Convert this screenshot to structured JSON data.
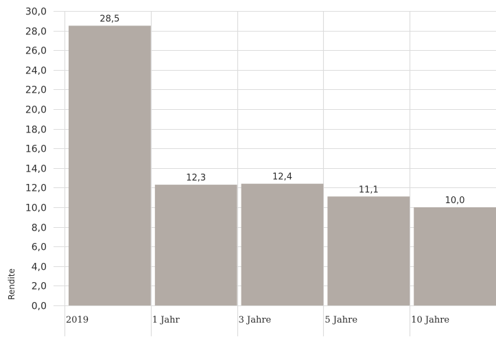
{
  "chart_data": {
    "type": "bar",
    "title": "",
    "xlabel": "",
    "ylabel": "Rendite",
    "categories": [
      "2019",
      "1 Jahr",
      "3 Jahre",
      "5 Jahre",
      "10 Jahre"
    ],
    "values": [
      28.5,
      12.3,
      12.4,
      11.1,
      10.0
    ],
    "data_labels": [
      "28,5",
      "12,3",
      "12,4",
      "11,1",
      "10,0"
    ],
    "ylim": [
      0,
      30
    ],
    "yticks": [
      0,
      2,
      4,
      6,
      8,
      10,
      12,
      14,
      16,
      18,
      20,
      22,
      24,
      26,
      28,
      30
    ],
    "ytick_labels": [
      "0,0",
      "2,0",
      "4,0",
      "6,0",
      "8,0",
      "10,0",
      "12,0",
      "14,0",
      "16,0",
      "18,0",
      "20,0",
      "22,0",
      "24,0",
      "26,0",
      "28,0",
      "30,0"
    ],
    "grid": true,
    "bar_color": "#b3aba5",
    "grid_color": "#dcdcdc",
    "text_color": "#2b2b2b"
  }
}
